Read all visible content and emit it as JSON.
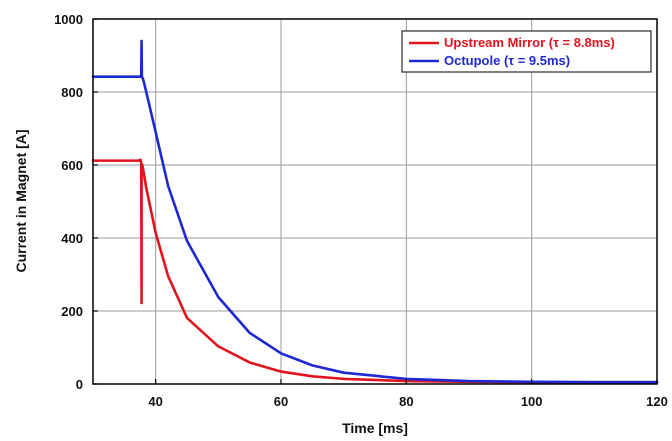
{
  "chart_data": {
    "type": "line",
    "xlabel": "Time [ms]",
    "ylabel": "Current in Magnet [A]",
    "xlim": [
      30,
      120
    ],
    "ylim": [
      0,
      1000
    ],
    "xticks": [
      40,
      60,
      80,
      100,
      120
    ],
    "yticks": [
      0,
      200,
      400,
      600,
      800,
      1000
    ],
    "grid": true,
    "legend_position": "top-right",
    "series": [
      {
        "name": "Upstream Mirror (τ = 8.8ms)",
        "color": "#e0141e",
        "x": [
          30,
          36,
          37.3,
          37.6,
          37.7,
          37.75,
          37.75,
          37.8,
          37.85,
          37.9,
          38.5,
          40,
          42,
          45,
          50,
          55,
          60,
          65,
          70,
          80,
          90,
          100,
          110,
          120
        ],
        "y": [
          612,
          612,
          612,
          614,
          605,
          222,
          585,
          602,
          600,
          598,
          537,
          414,
          295,
          181,
          103,
          59,
          34,
          21,
          14,
          8,
          6,
          5,
          5,
          5
        ]
      },
      {
        "name": "Octupole (τ = 9.5ms)",
        "color": "#1e28d2",
        "x": [
          30,
          36,
          37.4,
          37.6,
          37.7,
          37.75,
          37.8,
          37.85,
          37.9,
          38,
          38.5,
          40,
          42,
          45,
          50,
          55,
          60,
          65,
          70,
          80,
          90,
          100,
          110,
          120
        ],
        "y": [
          842,
          842,
          842,
          842,
          850,
          940,
          845,
          840,
          838,
          835,
          800,
          690,
          542,
          392,
          238,
          140,
          84,
          51,
          31,
          14,
          8,
          6,
          5,
          5
        ]
      }
    ]
  }
}
